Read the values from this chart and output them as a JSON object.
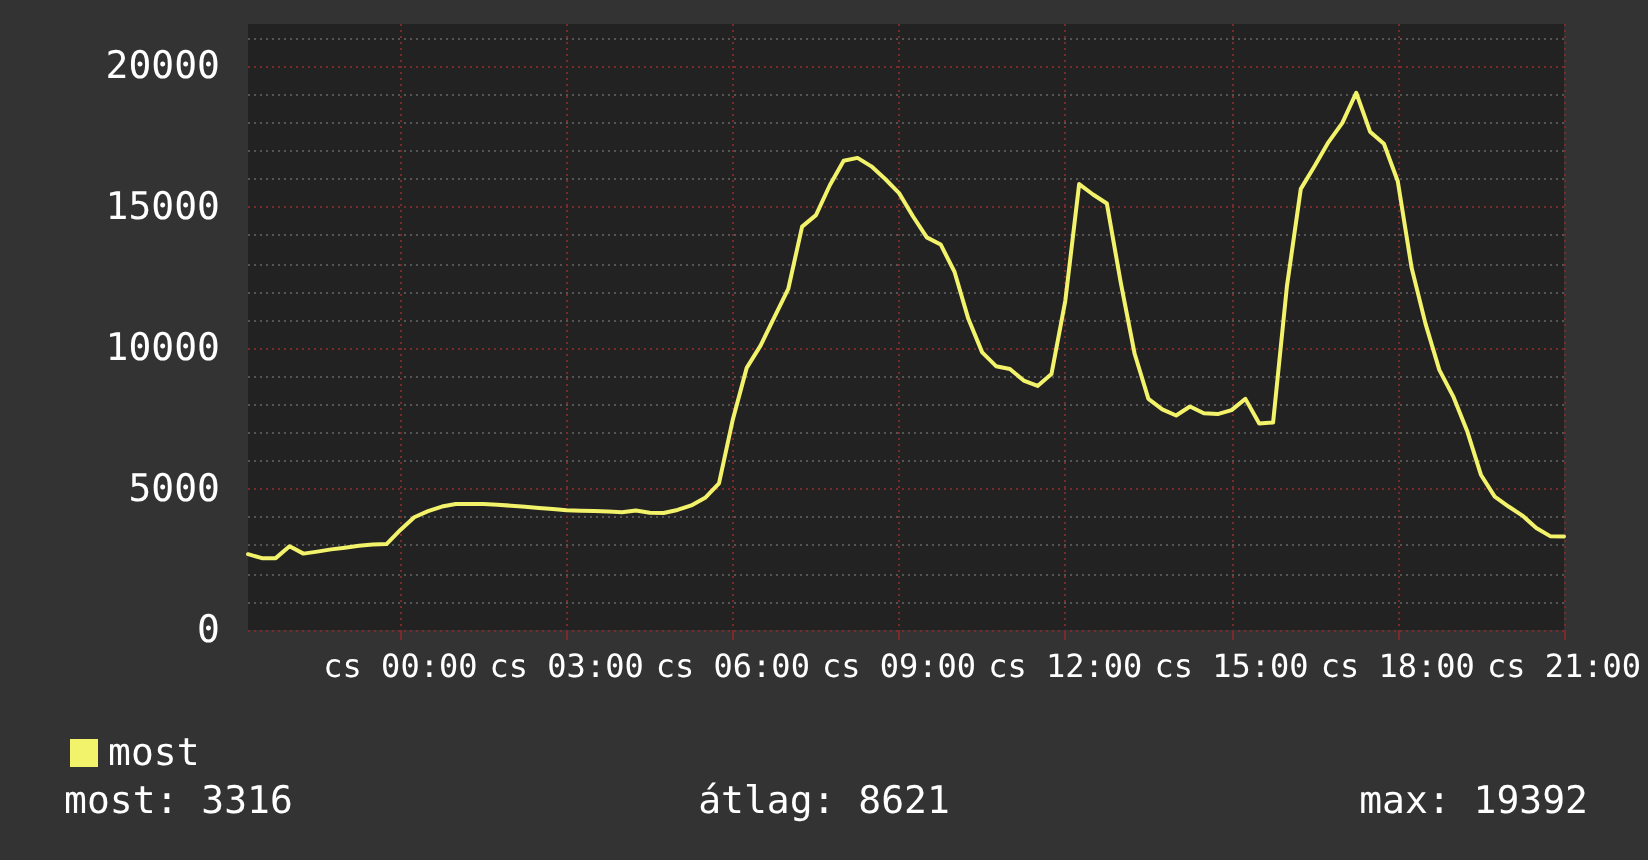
{
  "chart_data": {
    "type": "line",
    "legend": "bottom left",
    "grid": true,
    "marker": "none",
    "line_style": "solid",
    "categories": [
      null,
      null,
      null,
      null,
      null,
      null,
      null,
      null,
      null,
      null,
      null,
      "cs 00:00",
      null,
      null,
      null,
      null,
      null,
      null,
      null,
      null,
      null,
      null,
      null,
      "cs 03:00",
      null,
      null,
      null,
      null,
      null,
      null,
      null,
      null,
      null,
      null,
      null,
      "cs 06:00",
      null,
      null,
      null,
      null,
      null,
      null,
      null,
      null,
      null,
      null,
      null,
      "cs 09:00",
      null,
      null,
      null,
      null,
      null,
      null,
      null,
      null,
      null,
      null,
      null,
      "cs 12:00",
      null,
      null,
      null,
      null,
      null,
      null,
      null,
      null,
      null,
      null,
      null,
      "cs 15:00",
      null,
      null,
      null,
      null,
      null,
      null,
      null,
      null,
      null,
      null,
      null,
      "cs 18:00",
      null,
      null,
      null,
      null,
      null,
      null,
      null,
      null,
      null,
      null,
      null,
      "cs 21:00"
    ],
    "ylim": [
      0,
      21500
    ],
    "yticks": [
      0,
      5000,
      10000,
      15000,
      20000
    ],
    "annotations": [
      "most: 3316",
      "átlag: 8621",
      "max: 19392"
    ],
    "series": [
      {
        "name": "most",
        "color": "#f2f26b",
        "values": [
          2690,
          2550,
          2550,
          2970,
          2710,
          2780,
          2860,
          2920,
          2990,
          3030,
          3050,
          3550,
          4000,
          4220,
          4380,
          4470,
          4470,
          4470,
          4440,
          4410,
          4370,
          4330,
          4290,
          4250,
          4230,
          4220,
          4200,
          4180,
          4240,
          4160,
          4150,
          4260,
          4420,
          4690,
          5200,
          7470,
          9300,
          10090,
          11100,
          12100,
          14310,
          14720,
          15780,
          16650,
          16750,
          16450,
          16000,
          15500,
          14680,
          13930,
          13680,
          12710,
          11040,
          9850,
          9360,
          9260,
          8850,
          8660,
          9080,
          11680,
          15820,
          15450,
          15130,
          12330,
          9810,
          8200,
          7830,
          7610,
          7930,
          7690,
          7660,
          7800,
          8200,
          7330,
          7360,
          12200,
          15650,
          16460,
          17310,
          17990,
          19060,
          17680,
          17250,
          15920,
          12850,
          10870,
          9230,
          8290,
          7070,
          5510,
          4730,
          4380,
          4060,
          3620,
          3330,
          3316
        ]
      }
    ]
  }
}
